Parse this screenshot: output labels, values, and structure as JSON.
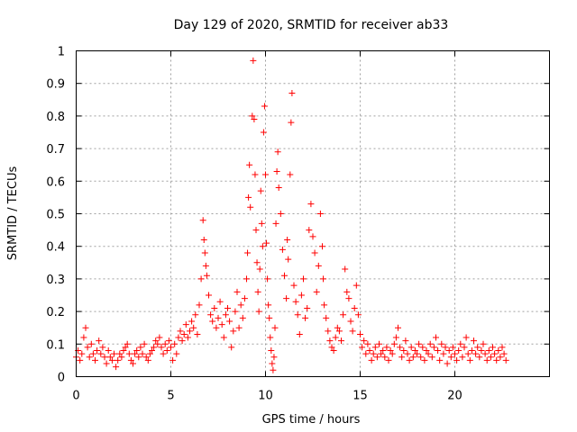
{
  "chart_data": {
    "type": "scatter",
    "title": "Day 129 of 2020, SRMTID for receiver ab33",
    "xlabel": "GPS time / hours",
    "ylabel": "SRMTID / TECUs",
    "xlim": [
      0,
      25
    ],
    "ylim": [
      0,
      1
    ],
    "xticks": [
      0,
      5,
      10,
      15,
      20
    ],
    "yticks": [
      0,
      0.1,
      0.2,
      0.3,
      0.4,
      0.5,
      0.6,
      0.7,
      0.8,
      0.9,
      1
    ],
    "grid": true,
    "marker": "+",
    "series": [
      {
        "name": "SRMTID",
        "color": "#ff0000",
        "points": [
          [
            0.0,
            0.06
          ],
          [
            0.1,
            0.08
          ],
          [
            0.2,
            0.05
          ],
          [
            0.3,
            0.07
          ],
          [
            0.4,
            0.12
          ],
          [
            0.5,
            0.15
          ],
          [
            0.6,
            0.09
          ],
          [
            0.7,
            0.06
          ],
          [
            0.8,
            0.1
          ],
          [
            0.9,
            0.07
          ],
          [
            1.0,
            0.05
          ],
          [
            1.1,
            0.08
          ],
          [
            1.2,
            0.11
          ],
          [
            1.3,
            0.07
          ],
          [
            1.4,
            0.09
          ],
          [
            1.5,
            0.06
          ],
          [
            1.6,
            0.04
          ],
          [
            1.7,
            0.08
          ],
          [
            1.8,
            0.06
          ],
          [
            1.9,
            0.05
          ],
          [
            2.0,
            0.07
          ],
          [
            2.1,
            0.03
          ],
          [
            2.2,
            0.05
          ],
          [
            2.3,
            0.07
          ],
          [
            2.4,
            0.06
          ],
          [
            2.5,
            0.08
          ],
          [
            2.6,
            0.09
          ],
          [
            2.7,
            0.1
          ],
          [
            2.8,
            0.07
          ],
          [
            2.9,
            0.05
          ],
          [
            3.0,
            0.04
          ],
          [
            3.1,
            0.07
          ],
          [
            3.2,
            0.08
          ],
          [
            3.3,
            0.06
          ],
          [
            3.4,
            0.09
          ],
          [
            3.5,
            0.07
          ],
          [
            3.6,
            0.1
          ],
          [
            3.7,
            0.06
          ],
          [
            3.8,
            0.05
          ],
          [
            3.9,
            0.07
          ],
          [
            4.0,
            0.08
          ],
          [
            4.1,
            0.09
          ],
          [
            4.2,
            0.11
          ],
          [
            4.3,
            0.1
          ],
          [
            4.4,
            0.12
          ],
          [
            4.5,
            0.09
          ],
          [
            4.6,
            0.07
          ],
          [
            4.7,
            0.1
          ],
          [
            4.8,
            0.08
          ],
          [
            4.9,
            0.11
          ],
          [
            5.0,
            0.09
          ],
          [
            5.1,
            0.05
          ],
          [
            5.2,
            0.1
          ],
          [
            5.3,
            0.07
          ],
          [
            5.4,
            0.12
          ],
          [
            5.5,
            0.14
          ],
          [
            5.6,
            0.11
          ],
          [
            5.7,
            0.13
          ],
          [
            5.8,
            0.16
          ],
          [
            5.9,
            0.12
          ],
          [
            6.0,
            0.14
          ],
          [
            6.1,
            0.17
          ],
          [
            6.2,
            0.15
          ],
          [
            6.3,
            0.19
          ],
          [
            6.4,
            0.13
          ],
          [
            6.5,
            0.22
          ],
          [
            6.6,
            0.3
          ],
          [
            6.7,
            0.48
          ],
          [
            6.75,
            0.42
          ],
          [
            6.8,
            0.38
          ],
          [
            6.85,
            0.34
          ],
          [
            6.9,
            0.31
          ],
          [
            7.0,
            0.25
          ],
          [
            7.1,
            0.19
          ],
          [
            7.2,
            0.17
          ],
          [
            7.3,
            0.21
          ],
          [
            7.4,
            0.15
          ],
          [
            7.5,
            0.18
          ],
          [
            7.6,
            0.23
          ],
          [
            7.7,
            0.16
          ],
          [
            7.8,
            0.12
          ],
          [
            7.9,
            0.19
          ],
          [
            8.0,
            0.21
          ],
          [
            8.1,
            0.17
          ],
          [
            8.2,
            0.09
          ],
          [
            8.3,
            0.14
          ],
          [
            8.4,
            0.2
          ],
          [
            8.5,
            0.26
          ],
          [
            8.6,
            0.15
          ],
          [
            8.7,
            0.22
          ],
          [
            8.8,
            0.18
          ],
          [
            8.9,
            0.24
          ],
          [
            9.0,
            0.3
          ],
          [
            9.05,
            0.38
          ],
          [
            9.1,
            0.55
          ],
          [
            9.15,
            0.65
          ],
          [
            9.2,
            0.52
          ],
          [
            9.3,
            0.8
          ],
          [
            9.35,
            0.97
          ],
          [
            9.4,
            0.79
          ],
          [
            9.45,
            0.62
          ],
          [
            9.5,
            0.45
          ],
          [
            9.55,
            0.35
          ],
          [
            9.6,
            0.26
          ],
          [
            9.65,
            0.2
          ],
          [
            9.7,
            0.33
          ],
          [
            9.75,
            0.57
          ],
          [
            9.8,
            0.47
          ],
          [
            9.85,
            0.4
          ],
          [
            9.9,
            0.75
          ],
          [
            9.95,
            0.83
          ],
          [
            10.0,
            0.62
          ],
          [
            10.05,
            0.41
          ],
          [
            10.1,
            0.3
          ],
          [
            10.15,
            0.22
          ],
          [
            10.2,
            0.18
          ],
          [
            10.25,
            0.12
          ],
          [
            10.3,
            0.08
          ],
          [
            10.35,
            0.04
          ],
          [
            10.4,
            0.02
          ],
          [
            10.45,
            0.06
          ],
          [
            10.5,
            0.15
          ],
          [
            10.55,
            0.47
          ],
          [
            10.6,
            0.63
          ],
          [
            10.65,
            0.69
          ],
          [
            10.7,
            0.58
          ],
          [
            10.8,
            0.5
          ],
          [
            10.9,
            0.39
          ],
          [
            11.0,
            0.31
          ],
          [
            11.1,
            0.24
          ],
          [
            11.15,
            0.42
          ],
          [
            11.2,
            0.36
          ],
          [
            11.3,
            0.62
          ],
          [
            11.35,
            0.78
          ],
          [
            11.4,
            0.87
          ],
          [
            11.5,
            0.28
          ],
          [
            11.6,
            0.23
          ],
          [
            11.7,
            0.19
          ],
          [
            11.8,
            0.13
          ],
          [
            11.9,
            0.25
          ],
          [
            12.0,
            0.3
          ],
          [
            12.1,
            0.18
          ],
          [
            12.2,
            0.21
          ],
          [
            12.3,
            0.45
          ],
          [
            12.4,
            0.53
          ],
          [
            12.5,
            0.43
          ],
          [
            12.6,
            0.38
          ],
          [
            12.7,
            0.26
          ],
          [
            12.8,
            0.34
          ],
          [
            12.9,
            0.5
          ],
          [
            13.0,
            0.4
          ],
          [
            13.05,
            0.3
          ],
          [
            13.1,
            0.22
          ],
          [
            13.2,
            0.18
          ],
          [
            13.3,
            0.14
          ],
          [
            13.4,
            0.11
          ],
          [
            13.5,
            0.09
          ],
          [
            13.6,
            0.08
          ],
          [
            13.7,
            0.12
          ],
          [
            13.8,
            0.15
          ],
          [
            13.9,
            0.14
          ],
          [
            14.0,
            0.11
          ],
          [
            14.1,
            0.19
          ],
          [
            14.2,
            0.33
          ],
          [
            14.3,
            0.26
          ],
          [
            14.4,
            0.24
          ],
          [
            14.5,
            0.17
          ],
          [
            14.6,
            0.14
          ],
          [
            14.7,
            0.21
          ],
          [
            14.8,
            0.28
          ],
          [
            14.9,
            0.19
          ],
          [
            15.0,
            0.13
          ],
          [
            15.1,
            0.09
          ],
          [
            15.2,
            0.11
          ],
          [
            15.3,
            0.07
          ],
          [
            15.4,
            0.1
          ],
          [
            15.5,
            0.08
          ],
          [
            15.6,
            0.05
          ],
          [
            15.7,
            0.07
          ],
          [
            15.8,
            0.09
          ],
          [
            15.9,
            0.06
          ],
          [
            16.0,
            0.1
          ],
          [
            16.1,
            0.07
          ],
          [
            16.2,
            0.08
          ],
          [
            16.3,
            0.06
          ],
          [
            16.4,
            0.09
          ],
          [
            16.5,
            0.05
          ],
          [
            16.6,
            0.08
          ],
          [
            16.7,
            0.07
          ],
          [
            16.8,
            0.1
          ],
          [
            16.9,
            0.12
          ],
          [
            17.0,
            0.15
          ],
          [
            17.1,
            0.09
          ],
          [
            17.2,
            0.06
          ],
          [
            17.3,
            0.08
          ],
          [
            17.4,
            0.11
          ],
          [
            17.5,
            0.07
          ],
          [
            17.6,
            0.05
          ],
          [
            17.7,
            0.09
          ],
          [
            17.8,
            0.06
          ],
          [
            17.9,
            0.08
          ],
          [
            18.0,
            0.07
          ],
          [
            18.1,
            0.1
          ],
          [
            18.2,
            0.06
          ],
          [
            18.3,
            0.09
          ],
          [
            18.4,
            0.05
          ],
          [
            18.5,
            0.08
          ],
          [
            18.6,
            0.07
          ],
          [
            18.7,
            0.1
          ],
          [
            18.8,
            0.06
          ],
          [
            18.9,
            0.09
          ],
          [
            19.0,
            0.12
          ],
          [
            19.1,
            0.08
          ],
          [
            19.2,
            0.05
          ],
          [
            19.3,
            0.1
          ],
          [
            19.4,
            0.07
          ],
          [
            19.5,
            0.09
          ],
          [
            19.6,
            0.04
          ],
          [
            19.7,
            0.08
          ],
          [
            19.8,
            0.06
          ],
          [
            19.9,
            0.09
          ],
          [
            20.0,
            0.07
          ],
          [
            20.1,
            0.05
          ],
          [
            20.2,
            0.08
          ],
          [
            20.3,
            0.1
          ],
          [
            20.4,
            0.06
          ],
          [
            20.5,
            0.09
          ],
          [
            20.6,
            0.12
          ],
          [
            20.7,
            0.07
          ],
          [
            20.8,
            0.05
          ],
          [
            20.9,
            0.08
          ],
          [
            21.0,
            0.11
          ],
          [
            21.1,
            0.07
          ],
          [
            21.2,
            0.09
          ],
          [
            21.3,
            0.06
          ],
          [
            21.4,
            0.08
          ],
          [
            21.5,
            0.1
          ],
          [
            21.6,
            0.07
          ],
          [
            21.7,
            0.05
          ],
          [
            21.8,
            0.08
          ],
          [
            21.9,
            0.06
          ],
          [
            22.0,
            0.09
          ],
          [
            22.1,
            0.07
          ],
          [
            22.2,
            0.05
          ],
          [
            22.3,
            0.08
          ],
          [
            22.4,
            0.06
          ],
          [
            22.5,
            0.09
          ],
          [
            22.6,
            0.07
          ],
          [
            22.7,
            0.05
          ]
        ]
      }
    ]
  }
}
